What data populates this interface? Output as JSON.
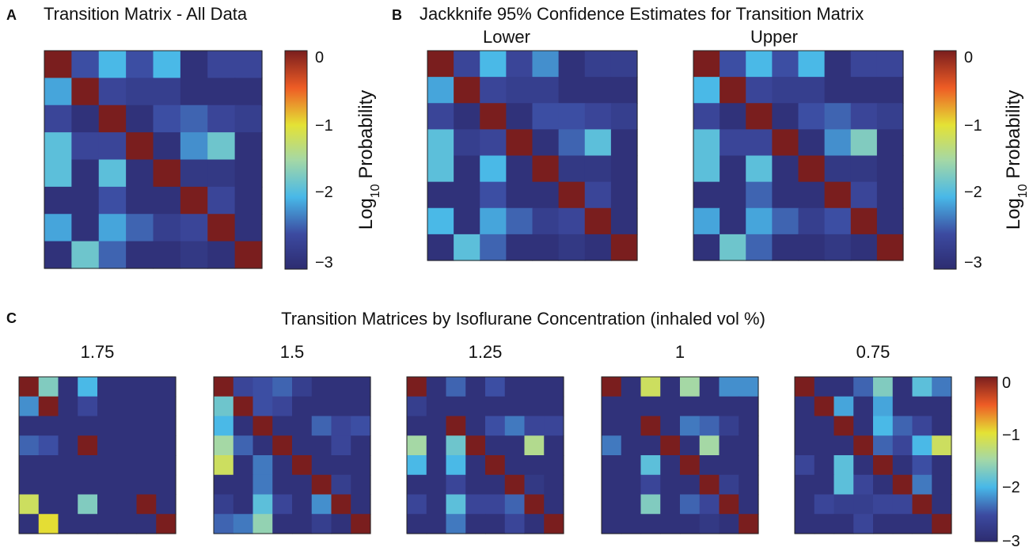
{
  "panels": {
    "a": {
      "letter": "A",
      "title": "Transition Matrix - All Data"
    },
    "b": {
      "letter": "B",
      "title": "Jackknife 95% Confidence Estimates for Transition Matrix",
      "lower": "Lower",
      "upper": "Upper"
    },
    "c": {
      "letter": "C",
      "title": "Transition Matrices by Isoflurane Concentration (inhaled vol %)"
    }
  },
  "colorbar": {
    "label_main": "Log",
    "label_sub": "10",
    "label_rest": " Probability",
    "ticks": [
      "0",
      "−1",
      "−2",
      "−3"
    ]
  },
  "chart_data": [
    {
      "type": "heatmap",
      "title": "Transition Matrix - All Data",
      "vmin": -3,
      "vmax": 0,
      "colormap": "jet",
      "values": [
        [
          0,
          -2.5,
          -2,
          -2.5,
          -2,
          -2.9,
          -2.6,
          -2.6
        ],
        [
          -2.1,
          0,
          -2.6,
          -2.7,
          -2.7,
          -2.9,
          -2.9,
          -2.9
        ],
        [
          -2.6,
          -2.9,
          0,
          -2.9,
          -2.5,
          -2.4,
          -2.6,
          -2.7
        ],
        [
          -1.9,
          -2.6,
          -2.6,
          0,
          -2.9,
          -2.2,
          -1.8,
          -2.9
        ],
        [
          -1.9,
          -2.9,
          -1.9,
          -2.9,
          0,
          -2.8,
          -2.8,
          -2.9
        ],
        [
          -2.9,
          -2.9,
          -2.5,
          -2.9,
          -2.9,
          0,
          -2.6,
          -2.9
        ],
        [
          -2.1,
          -2.9,
          -2.1,
          -2.4,
          -2.7,
          -2.6,
          0,
          -2.9
        ],
        [
          -2.9,
          -1.8,
          -2.4,
          -2.9,
          -2.9,
          -2.8,
          -2.9,
          0
        ]
      ]
    },
    {
      "type": "heatmap",
      "title": "Lower",
      "vmin": -3,
      "vmax": 0,
      "colormap": "jet",
      "values": [
        [
          0,
          -2.6,
          -2,
          -2.6,
          -2.2,
          -2.9,
          -2.7,
          -2.7
        ],
        [
          -2.1,
          0,
          -2.6,
          -2.7,
          -2.7,
          -2.9,
          -2.9,
          -2.9
        ],
        [
          -2.6,
          -2.9,
          0,
          -2.9,
          -2.5,
          -2.5,
          -2.6,
          -2.7
        ],
        [
          -1.9,
          -2.7,
          -2.6,
          0,
          -2.9,
          -2.4,
          -1.9,
          -2.9
        ],
        [
          -1.9,
          -2.9,
          -2,
          -2.9,
          0,
          -2.8,
          -2.8,
          -2.9
        ],
        [
          -2.9,
          -2.9,
          -2.5,
          -2.9,
          -2.9,
          0,
          -2.6,
          -2.9
        ],
        [
          -2,
          -2.9,
          -2.1,
          -2.4,
          -2.7,
          -2.6,
          0,
          -2.9
        ],
        [
          -2.9,
          -1.9,
          -2.4,
          -2.9,
          -2.9,
          -2.8,
          -2.9,
          0
        ]
      ]
    },
    {
      "type": "heatmap",
      "title": "Upper",
      "vmin": -3,
      "vmax": 0,
      "colormap": "jet",
      "values": [
        [
          0,
          -2.5,
          -2,
          -2.5,
          -2,
          -2.9,
          -2.6,
          -2.6
        ],
        [
          -2,
          0,
          -2.6,
          -2.7,
          -2.7,
          -2.9,
          -2.9,
          -2.9
        ],
        [
          -2.6,
          -2.9,
          0,
          -2.9,
          -2.5,
          -2.4,
          -2.6,
          -2.7
        ],
        [
          -1.9,
          -2.6,
          -2.6,
          0,
          -2.9,
          -2.2,
          -1.7,
          -2.9
        ],
        [
          -1.9,
          -2.9,
          -1.9,
          -2.9,
          0,
          -2.8,
          -2.8,
          -2.9
        ],
        [
          -2.9,
          -2.9,
          -2.4,
          -2.9,
          -2.9,
          0,
          -2.6,
          -2.9
        ],
        [
          -2.1,
          -2.9,
          -2.1,
          -2.4,
          -2.7,
          -2.5,
          0,
          -2.9
        ],
        [
          -2.9,
          -1.8,
          -2.4,
          -2.9,
          -2.9,
          -2.8,
          -2.9,
          0
        ]
      ]
    },
    {
      "type": "heatmap",
      "title": "1.75",
      "vmin": -3,
      "vmax": 0,
      "colormap": "jet",
      "values": [
        [
          0,
          -1.7,
          -2.9,
          -2,
          -2.9,
          -2.9,
          -2.9,
          -2.9
        ],
        [
          -2.2,
          0,
          -2.9,
          -2.6,
          -2.9,
          -2.9,
          -2.9,
          -2.9
        ],
        [
          -2.9,
          -2.9,
          -2.9,
          -2.9,
          -2.9,
          -2.9,
          -2.9,
          -2.9
        ],
        [
          -2.4,
          -2.5,
          -2.9,
          0,
          -2.9,
          -2.9,
          -2.9,
          -2.9
        ],
        [
          -2.9,
          -2.9,
          -2.9,
          -2.9,
          -2.9,
          -2.9,
          -2.9,
          -2.9
        ],
        [
          -2.9,
          -2.9,
          -2.9,
          -2.9,
          -2.9,
          -2.9,
          -2.9,
          -2.9
        ],
        [
          -1.2,
          -2.9,
          -2.9,
          -1.7,
          -2.9,
          -2.9,
          0,
          -2.9
        ],
        [
          -2.9,
          -1,
          -2.9,
          -2.9,
          -2.9,
          -2.9,
          -2.9,
          0
        ]
      ]
    },
    {
      "type": "heatmap",
      "title": "1.5",
      "vmin": -3,
      "vmax": 0,
      "colormap": "jet",
      "values": [
        [
          0,
          -2.6,
          -2.5,
          -2.4,
          -2.7,
          -2.9,
          -2.9,
          -2.9
        ],
        [
          -1.8,
          0,
          -2.5,
          -2.6,
          -2.9,
          -2.9,
          -2.9,
          -2.9
        ],
        [
          -2.0,
          -2.9,
          0,
          -2.9,
          -2.9,
          -2.4,
          -2.6,
          -2.5
        ],
        [
          -1.5,
          -2.4,
          -2.9,
          0,
          -2.9,
          -2.9,
          -2.6,
          -2.9
        ],
        [
          -1.2,
          -2.9,
          -2.3,
          -2.9,
          0,
          -2.9,
          -2.9,
          -2.9
        ],
        [
          -2.9,
          -2.9,
          -2.3,
          -2.9,
          -2.9,
          0,
          -2.7,
          -2.9
        ],
        [
          -2.7,
          -2.9,
          -1.9,
          -2.6,
          -2.9,
          -2.2,
          0,
          -2.9
        ],
        [
          -2.4,
          -2.3,
          -1.6,
          -2.9,
          -2.9,
          -2.7,
          -2.9,
          0
        ]
      ]
    },
    {
      "type": "heatmap",
      "title": "1.25",
      "vmin": -3,
      "vmax": 0,
      "colormap": "jet",
      "values": [
        [
          0,
          -2.9,
          -2.4,
          -2.9,
          -2.5,
          -2.9,
          -2.9,
          -2.9
        ],
        [
          -2.7,
          -2.9,
          -2.9,
          -2.9,
          -2.9,
          -2.9,
          -2.9,
          -2.9
        ],
        [
          -2.9,
          -2.9,
          0,
          -2.9,
          -2.5,
          -2.3,
          -2.6,
          -2.6
        ],
        [
          -1.5,
          -2.9,
          -1.8,
          0,
          -2.9,
          -2.9,
          -1.4,
          -2.9
        ],
        [
          -2,
          -2.9,
          -2,
          -2.9,
          0,
          -2.9,
          -2.9,
          -2.9
        ],
        [
          -2.9,
          -2.9,
          -2.6,
          -2.9,
          -2.9,
          0,
          -2.8,
          -2.9
        ],
        [
          -2.6,
          -2.9,
          -1.9,
          -2.6,
          -2.6,
          -2.4,
          0,
          -2.9
        ],
        [
          -2.9,
          -2.9,
          -2.3,
          -2.9,
          -2.9,
          -2.6,
          -2.9,
          0
        ]
      ]
    },
    {
      "type": "heatmap",
      "title": "1",
      "vmin": -3,
      "vmax": 0,
      "colormap": "jet",
      "values": [
        [
          0,
          -2.9,
          -1.2,
          -2.9,
          -1.5,
          -2.9,
          -2.2,
          -2.2
        ],
        [
          -2.9,
          -2.9,
          -2.9,
          -2.9,
          -2.9,
          -2.9,
          -2.9,
          -2.9
        ],
        [
          -2.9,
          -2.9,
          0,
          -2.9,
          -2.3,
          -2.4,
          -2.7,
          -2.9
        ],
        [
          -2.3,
          -2.9,
          -2.9,
          0,
          -2.9,
          -1.5,
          -2.9,
          -2.9
        ],
        [
          -2.9,
          -2.9,
          -1.9,
          -2.9,
          0,
          -2.9,
          -2.9,
          -2.9
        ],
        [
          -2.9,
          -2.9,
          -2.6,
          -2.9,
          -2.9,
          0,
          -2.7,
          -2.9
        ],
        [
          -2.9,
          -2.9,
          -1.7,
          -2.9,
          -2.4,
          -2.6,
          0,
          -2.9
        ],
        [
          -2.9,
          -2.9,
          -2.9,
          -2.9,
          -2.9,
          -2.8,
          -2.9,
          0
        ]
      ]
    },
    {
      "type": "heatmap",
      "title": "0.75",
      "vmin": -3,
      "vmax": 0,
      "colormap": "jet",
      "values": [
        [
          0,
          -2.9,
          -2.9,
          -2.4,
          -1.7,
          -2.9,
          -1.9,
          -2.3
        ],
        [
          -2.9,
          0,
          -2.1,
          -2.9,
          -2.1,
          -2.9,
          -2.9,
          -2.9
        ],
        [
          -2.9,
          -2.9,
          0,
          -2.9,
          -2,
          -2.4,
          -2.6,
          -2.9
        ],
        [
          -2.9,
          -2.9,
          -2.9,
          0,
          -2.4,
          -2.6,
          -2,
          -1.2
        ],
        [
          -2.6,
          -2.9,
          -1.9,
          -2.9,
          0,
          -2.9,
          -2.5,
          -2.9
        ],
        [
          -2.9,
          -2.9,
          -1.9,
          -2.6,
          -2.9,
          0,
          -2.3,
          -2.9
        ],
        [
          -2.9,
          -2.6,
          -2.7,
          -2.7,
          -2.6,
          -2.6,
          0,
          -2.9
        ],
        [
          -2.9,
          -2.9,
          -2.9,
          -2.6,
          -2.9,
          -2.9,
          -2.9,
          0
        ]
      ]
    }
  ]
}
